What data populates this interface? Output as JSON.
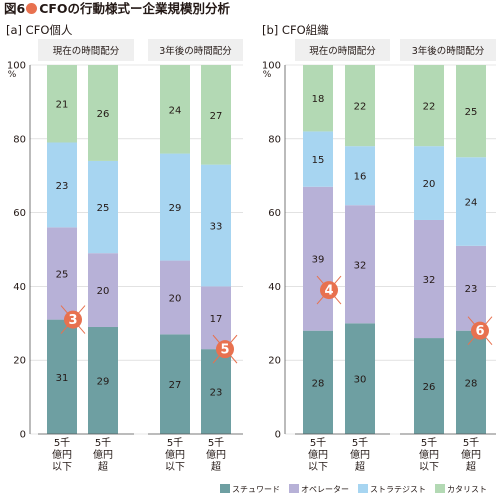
{
  "title": {
    "prefix": "図6",
    "text": "CFOの行動様式ー企業規模別分析"
  },
  "colors": {
    "steward": "#6e9fa2",
    "operator": "#b7b1d7",
    "strategist": "#a7d5f1",
    "catalyst": "#b3d9b4",
    "marker": "#e8714f",
    "axis": "#555555",
    "grid": "#d0d0d0",
    "header_bg": "#efefef"
  },
  "legend": [
    {
      "name": "スチュワード",
      "color_key": "steward"
    },
    {
      "name": "オペレーター",
      "color_key": "operator"
    },
    {
      "name": "ストラテジスト",
      "color_key": "strategist"
    },
    {
      "name": "カタリスト",
      "color_key": "catalyst"
    }
  ],
  "chart_data": [
    {
      "type": "bar",
      "stacked": true,
      "title": "[a] CFO個人",
      "ylim": [
        0,
        100
      ],
      "yticks": [
        0,
        20,
        40,
        60,
        80,
        100
      ],
      "yunit": "%",
      "groups": [
        {
          "header": "現在の時間配分",
          "categories": [
            "5千\n億円\n以下",
            "5千\n億円\n超"
          ],
          "series": [
            {
              "name": "スチュワード",
              "values": [
                31,
                29
              ]
            },
            {
              "name": "オペレーター",
              "values": [
                25,
                20
              ]
            },
            {
              "name": "ストラテジスト",
              "values": [
                23,
                25
              ]
            },
            {
              "name": "カタリスト",
              "values": [
                21,
                26
              ]
            }
          ],
          "marker": {
            "label": "3",
            "at_value": 31
          }
        },
        {
          "header": "3年後の時間配分",
          "categories": [
            "5千\n億円\n以下",
            "5千\n億円\n超"
          ],
          "series": [
            {
              "name": "スチュワード",
              "values": [
                27,
                23
              ]
            },
            {
              "name": "オペレーター",
              "values": [
                20,
                17
              ]
            },
            {
              "name": "ストラテジスト",
              "values": [
                29,
                33
              ]
            },
            {
              "name": "カタリスト",
              "values": [
                24,
                27
              ]
            }
          ],
          "marker": {
            "label": "5",
            "at_value": 23
          }
        }
      ]
    },
    {
      "type": "bar",
      "stacked": true,
      "title": "[b] CFO組織",
      "ylim": [
        0,
        100
      ],
      "yticks": [
        0,
        20,
        40,
        60,
        80,
        100
      ],
      "yunit": "%",
      "groups": [
        {
          "header": "現在の時間配分",
          "categories": [
            "5千\n億円\n以下",
            "5千\n億円\n超"
          ],
          "series": [
            {
              "name": "スチュワード",
              "values": [
                28,
                30
              ]
            },
            {
              "name": "オペレーター",
              "values": [
                39,
                32
              ]
            },
            {
              "name": "ストラテジスト",
              "values": [
                15,
                16
              ]
            },
            {
              "name": "カタリスト",
              "values": [
                18,
                22
              ]
            }
          ],
          "marker": {
            "label": "4",
            "at_value": 39
          }
        },
        {
          "header": "3年後の時間配分",
          "categories": [
            "5千\n億円\n以下",
            "5千\n億円\n超"
          ],
          "series": [
            {
              "name": "スチュワード",
              "values": [
                26,
                28
              ]
            },
            {
              "name": "オペレーター",
              "values": [
                32,
                23
              ]
            },
            {
              "name": "ストラテジスト",
              "values": [
                20,
                24
              ]
            },
            {
              "name": "カタリスト",
              "values": [
                22,
                25
              ]
            }
          ],
          "marker": {
            "label": "6",
            "at_value": 28
          }
        }
      ]
    }
  ]
}
